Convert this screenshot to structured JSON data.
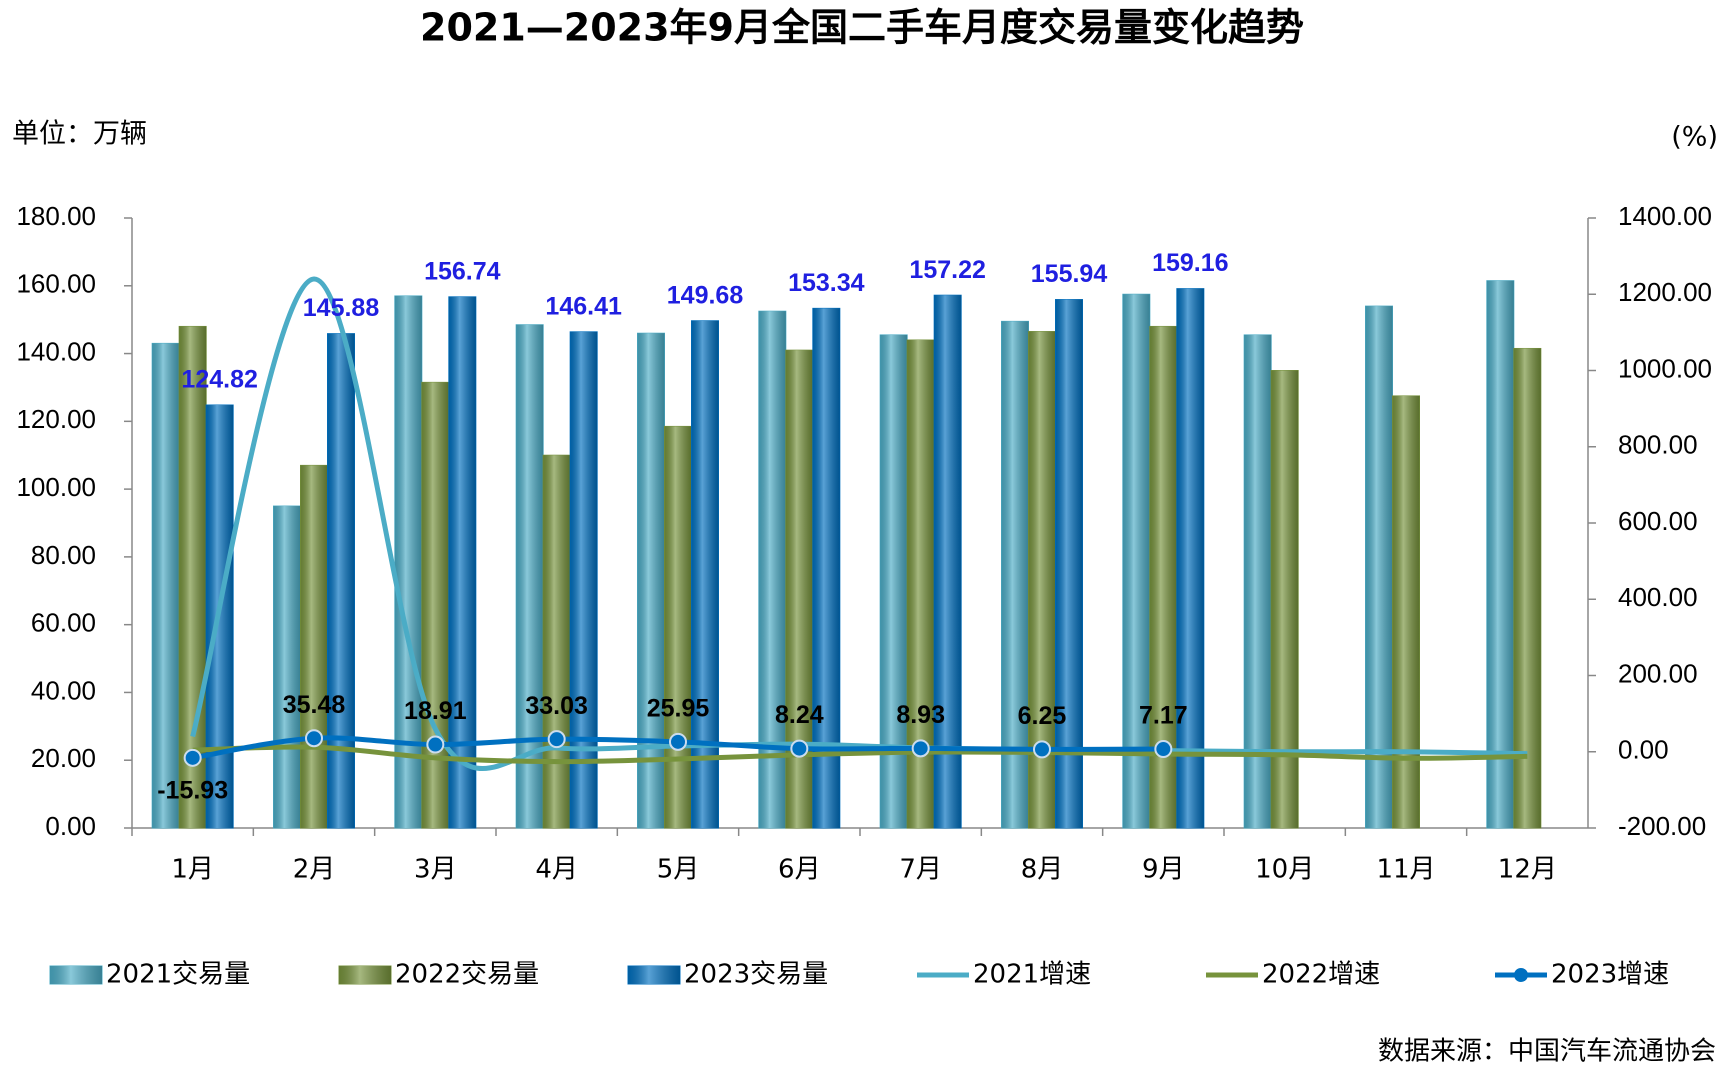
{
  "chart_data": {
    "type": "bar",
    "title": "2021—2023年9月全国二手车月度交易量变化趋势",
    "unit_label": "单位：万辆",
    "y2_label": "(%)",
    "source": "数据来源：中国汽车流通协会",
    "categories": [
      "1月",
      "2月",
      "3月",
      "4月",
      "5月",
      "6月",
      "7月",
      "8月",
      "9月",
      "10月",
      "11月",
      "12月"
    ],
    "series": [
      {
        "name": "2021交易量",
        "type": "bar",
        "color": "#4bacc6",
        "values": [
          143,
          95,
          157,
          148.5,
          146,
          152.5,
          145.5,
          149.5,
          157.5,
          145.5,
          154,
          161.5
        ]
      },
      {
        "name": "2022交易量",
        "type": "bar",
        "color": "#77933c",
        "values": [
          148,
          107,
          131.5,
          110,
          118.5,
          141,
          144,
          146.5,
          148,
          135,
          127.5,
          141.5
        ]
      },
      {
        "name": "2023交易量",
        "type": "bar",
        "color": "#0070c0",
        "label_color": "#1f1fe0",
        "values": [
          124.82,
          145.88,
          156.74,
          146.41,
          149.68,
          153.34,
          157.22,
          155.94,
          159.16,
          null,
          null,
          null
        ]
      },
      {
        "name": "2021增速",
        "type": "line",
        "axis": "y2",
        "color": "#4bacc6",
        "values": [
          40,
          1240,
          60,
          10,
          15,
          20,
          10,
          5,
          3,
          0,
          0,
          -5
        ]
      },
      {
        "name": "2022增速",
        "type": "line",
        "axis": "y2",
        "color": "#77933c",
        "values": [
          4,
          12,
          -16,
          -26,
          -19,
          -8,
          -1,
          -2,
          -6,
          -8,
          -17,
          -12
        ]
      },
      {
        "name": "2023增速",
        "type": "line",
        "axis": "y2",
        "color": "#0070c0",
        "marker": true,
        "label_color": "#000000",
        "values": [
          -15.93,
          35.48,
          18.91,
          33.03,
          25.95,
          8.24,
          8.93,
          6.25,
          7.17,
          null,
          null,
          null
        ]
      }
    ],
    "ylim": [
      0,
      180
    ],
    "yticks": [
      {
        "value": 0,
        "label": "0.00"
      },
      {
        "value": 20,
        "label": "20.00"
      },
      {
        "value": 40,
        "label": "40.00"
      },
      {
        "value": 60,
        "label": "60.00"
      },
      {
        "value": 80,
        "label": "80.00"
      },
      {
        "value": 100,
        "label": "100.00"
      },
      {
        "value": 120,
        "label": "120.00"
      },
      {
        "value": 140,
        "label": "140.00"
      },
      {
        "value": 160,
        "label": "160.00"
      },
      {
        "value": 180,
        "label": "180.00"
      }
    ],
    "y2lim": [
      -200,
      1400
    ],
    "y2ticks": [
      {
        "value": -200,
        "label": "-200.00"
      },
      {
        "value": 0,
        "label": "0.00"
      },
      {
        "value": 200,
        "label": "200.00"
      },
      {
        "value": 400,
        "label": "400.00"
      },
      {
        "value": 600,
        "label": "600.00"
      },
      {
        "value": 800,
        "label": "800.00"
      },
      {
        "value": 1000,
        "label": "1000.00"
      },
      {
        "value": 1200,
        "label": "1200.00"
      },
      {
        "value": 1400,
        "label": "1400.00"
      }
    ],
    "grid": false,
    "legend": "bottom"
  }
}
